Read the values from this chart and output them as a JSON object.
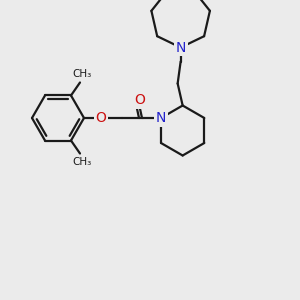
{
  "bg_color": "#ebebeb",
  "bond_color": "#1a1a1a",
  "N_color": "#2222cc",
  "O_color": "#cc1111",
  "lw": 1.6,
  "dpi": 100,
  "figsize": [
    3.0,
    3.0
  ],
  "xlim": [
    0,
    300
  ],
  "ylim": [
    0,
    300
  ]
}
